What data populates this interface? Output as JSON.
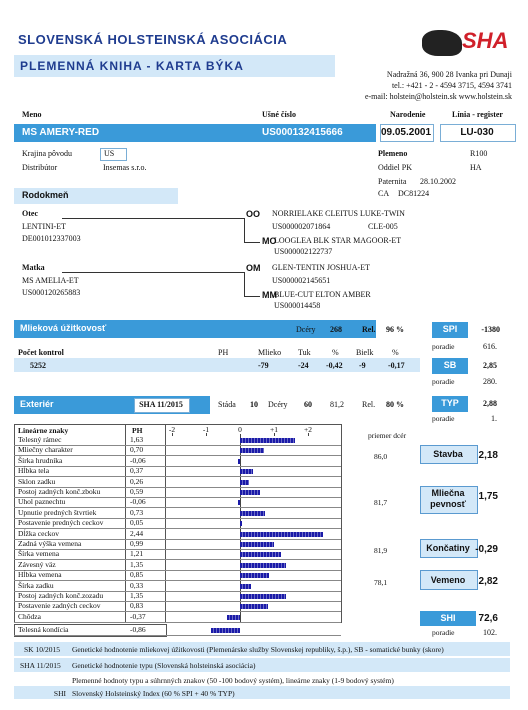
{
  "header": {
    "title": "SLOVENSKÁ HOLSTEINSKÁ ASOCIÁCIA",
    "subtitle": "PLEMENNÁ KNIHA - KARTA BÝKA",
    "logo": "SHA",
    "address": [
      "Nadražná 36, 900 28 Ivanka pri Dunaji",
      "tel.: +421 - 2 - 4594 3715, 4594 3741",
      "e-mail: holstein@holstein.sk   www.holstein.sk"
    ]
  },
  "identity": {
    "name_label": "Meno",
    "ear_label": "Ušné číslo",
    "birth_label": "Narodenie",
    "line_label": "Línia - register",
    "name": "MS AMERY-RED",
    "ear": "US000132415666",
    "birth": "09.05.2001",
    "line": "LU-030"
  },
  "origin": {
    "country_label": "Krajina pôvodu",
    "country": "US",
    "distributor_label": "Distribútor",
    "distributor": "Insemas s.r.o."
  },
  "breed": {
    "breed_label": "Plemeno",
    "breed": "R100",
    "section_label": "Oddiel PK",
    "section": "HA",
    "paternity_label": "Paternita",
    "paternity": "28.10.2002",
    "ca_label": "CA",
    "ca": "DC81224"
  },
  "pedigree": {
    "title": "Rodokmeň",
    "sire": {
      "label": "Otec",
      "name": "LENTINI-ET",
      "id": "DE001012337003"
    },
    "ss": {
      "label": "OO",
      "name": "NORRIELAKE CLEITUS LUKE-TWIN",
      "id": "US000002071864",
      "code": "CLE-005"
    },
    "sd": {
      "label": "MO",
      "name": "LOOGLEA BLK STAR MAGOOR-ET",
      "id": "US000002122737"
    },
    "dam": {
      "label": "Matka",
      "name": "MS AMELIA-ET",
      "id": "US000120265883"
    },
    "ds": {
      "label": "OM",
      "name": "GLEN-TENTIN JOSHUA-ET",
      "id": "US000002145651"
    },
    "dd": {
      "label": "MM",
      "name": "BLUE-CUT ELTON AMBER",
      "id": "US000014458"
    }
  },
  "milk": {
    "title": "Mlieková úžitkovosť",
    "daughters_label": "Dcéry",
    "daughters": "268",
    "rel_label": "Rel.",
    "rel": "96 %",
    "spi_label": "SPI",
    "spi": "-1380",
    "spi_rank_label": "poradie",
    "spi_rank": "616.",
    "headers": [
      "Počet kontrol",
      "PH",
      "Mlieko",
      "Tuk",
      "%",
      "Bielk",
      "%"
    ],
    "values": [
      "5252",
      "-79",
      "-24",
      "-0,42",
      "-9",
      "-0,17"
    ],
    "sb_label": "SB",
    "sb": "2,85",
    "sb_rank_label": "poradie",
    "sb_rank": "280."
  },
  "exterior": {
    "title": "Exteriér",
    "eval": "SHA 11/2015",
    "herds_label": "Stáda",
    "herds": "10",
    "daughters_label": "Dcéry",
    "daughters": "60",
    "avg": "81,2",
    "rel_label": "Rel.",
    "rel": "80 %",
    "typ_label": "TYP",
    "typ": "2,88",
    "typ_rank_label": "poradie",
    "typ_rank": "1.",
    "linear": {
      "name_header": "Lineárne znaky",
      "ph_header": "PH",
      "ticks": [
        -2,
        -1,
        0,
        {
          "value": 1,
          "label": "+1"
        },
        {
          "value": 2,
          "label": "+2"
        }
      ],
      "rows": [
        {
          "name": "Telesný rámec",
          "value": 1.63,
          "label": "1,63"
        },
        {
          "name": "Mliečny charakter",
          "value": 0.7,
          "label": "0,70"
        },
        {
          "name": "Šírka hrudníka",
          "value": -0.06,
          "label": "-0,06"
        },
        {
          "name": "Hĺbka tela",
          "value": 0.37,
          "label": "0,37"
        },
        {
          "name": "Sklon zadku",
          "value": 0.26,
          "label": "0,26"
        },
        {
          "name": "Postoj zadných konč.zboku",
          "value": 0.59,
          "label": "0,59"
        },
        {
          "name": "Uhol paznechtu",
          "value": -0.06,
          "label": "-0,06"
        },
        {
          "name": "Upnutie predných štvrtiek",
          "value": 0.73,
          "label": "0,73"
        },
        {
          "name": "Postavenie predných ceckov",
          "value": 0.05,
          "label": "0,05"
        },
        {
          "name": "Dĺžka ceckov",
          "value": 2.44,
          "label": "2,44"
        },
        {
          "name": "Zadná výška vemena",
          "value": 0.99,
          "label": "0,99"
        },
        {
          "name": "Šírka vemena",
          "value": 1.21,
          "label": "1,21"
        },
        {
          "name": "Závesný väz",
          "value": 1.35,
          "label": "1,35"
        },
        {
          "name": "Hĺbka vemena",
          "value": 0.85,
          "label": "0,85"
        },
        {
          "name": "Šírka zadku",
          "value": 0.33,
          "label": "0,33"
        },
        {
          "name": "Postoj zadných konč.zozadu",
          "value": 1.35,
          "label": "1,35"
        },
        {
          "name": "Postavenie zadných ceckov",
          "value": 0.83,
          "label": "0,83"
        },
        {
          "name": "Chôdza",
          "value": -0.37,
          "label": "-0,37"
        }
      ],
      "extra": {
        "name": "Telesná kondícia",
        "value": -0.86,
        "label": "-0,86"
      }
    },
    "composites": {
      "avg_header": "priemer dcér",
      "items": [
        {
          "avg": "86,0",
          "name": "Stavba",
          "value": "2,18"
        },
        {
          "avg": "81,7",
          "name": "Mliečna pevnosť",
          "value": "1,75"
        },
        {
          "avg": "81,9",
          "name": "Končatiny",
          "value": "-0,29"
        },
        {
          "avg": "78,1",
          "name": "Vemeno",
          "value": "2,82"
        }
      ]
    },
    "shi": {
      "label": "SHI",
      "value": "72,6",
      "rank_label": "poradie",
      "rank": "102."
    }
  },
  "footer": {
    "milk": {
      "code": "SK 10/2015",
      "text": "Genetické hodnotenie mliekovej úžitkovosti (Plemenárske služby Slovenskej republiky, š.p.), SB - somatické bunky (skore)"
    },
    "type": {
      "code": "SHA 11/2015",
      "text": "Genetické hodnotenie typu (Slovenská holsteinská asociácia)"
    },
    "note": "Plemenné hodnoty typu a súhrnných znakov (50 -100 bodový systém), lineárne znaky (1-9 bodový systém)",
    "shi": {
      "code": "SHI",
      "text": "Slovenský Holsteinský Index (60 % SPI + 40 % TYP)"
    }
  }
}
